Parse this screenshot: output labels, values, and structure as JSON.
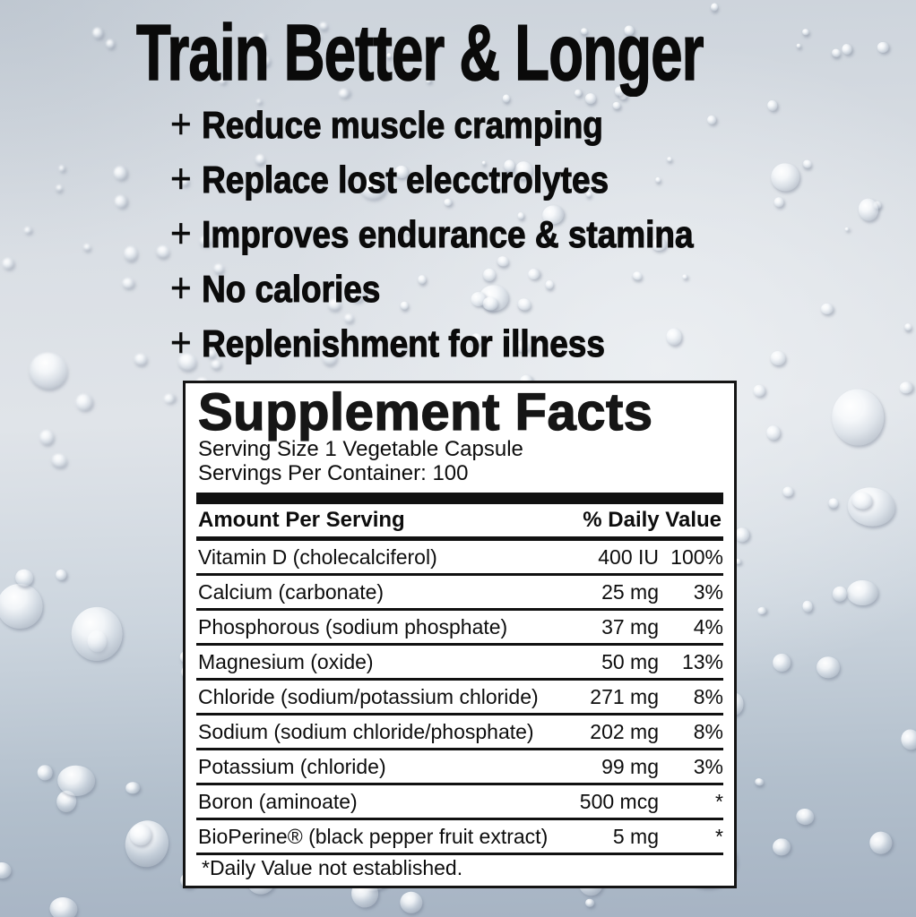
{
  "title": "Train Better & Longer",
  "bullet_marker": "+",
  "benefits": [
    {
      "text": "Reduce muscle cramping"
    },
    {
      "text": "Replace lost elecctrolytes"
    },
    {
      "text": "Improves endurance & stamina"
    },
    {
      "text": "No calories"
    },
    {
      "text": "Replenishment for illness"
    }
  ],
  "supplement_facts": {
    "heading": "Supplement Facts",
    "serving_size": "Serving Size 1 Vegetable Capsule",
    "servings_per_container": "Servings Per Container: 100",
    "columns": {
      "amount": "Amount Per Serving",
      "daily_value": "% Daily Value"
    },
    "rows": [
      {
        "name": "Vitamin D (cholecalciferol)",
        "amount": "400 IU",
        "daily_value": "100%"
      },
      {
        "name": "Calcium (carbonate)",
        "amount": "25 mg",
        "daily_value": "3%"
      },
      {
        "name": "Phosphorous (sodium phosphate)",
        "amount": "37 mg",
        "daily_value": "4%"
      },
      {
        "name": "Magnesium (oxide)",
        "amount": "50 mg",
        "daily_value": "13%"
      },
      {
        "name": "Chloride (sodium/potassium chloride)",
        "amount": "271 mg",
        "daily_value": "8%"
      },
      {
        "name": "Sodium (sodium chloride/phosphate)",
        "amount": "202 mg",
        "daily_value": "8%"
      },
      {
        "name": "Potassium (chloride)",
        "amount": "99 mg",
        "daily_value": "3%"
      },
      {
        "name": "Boron (aminoate)",
        "amount": "500 mcg",
        "daily_value": "*"
      },
      {
        "name": "BioPerine® (black pepper fruit extract)",
        "amount": "5 mg",
        "daily_value": "*"
      }
    ],
    "footnote": "*Daily Value not established."
  },
  "colors": {
    "text": "#0d0d0d",
    "panel_background": "#ffffff",
    "panel_border": "#141414",
    "background_top": "#ccd3db",
    "background_middle": "#e0e4e9",
    "background_bottom": "#a6b3c3"
  }
}
